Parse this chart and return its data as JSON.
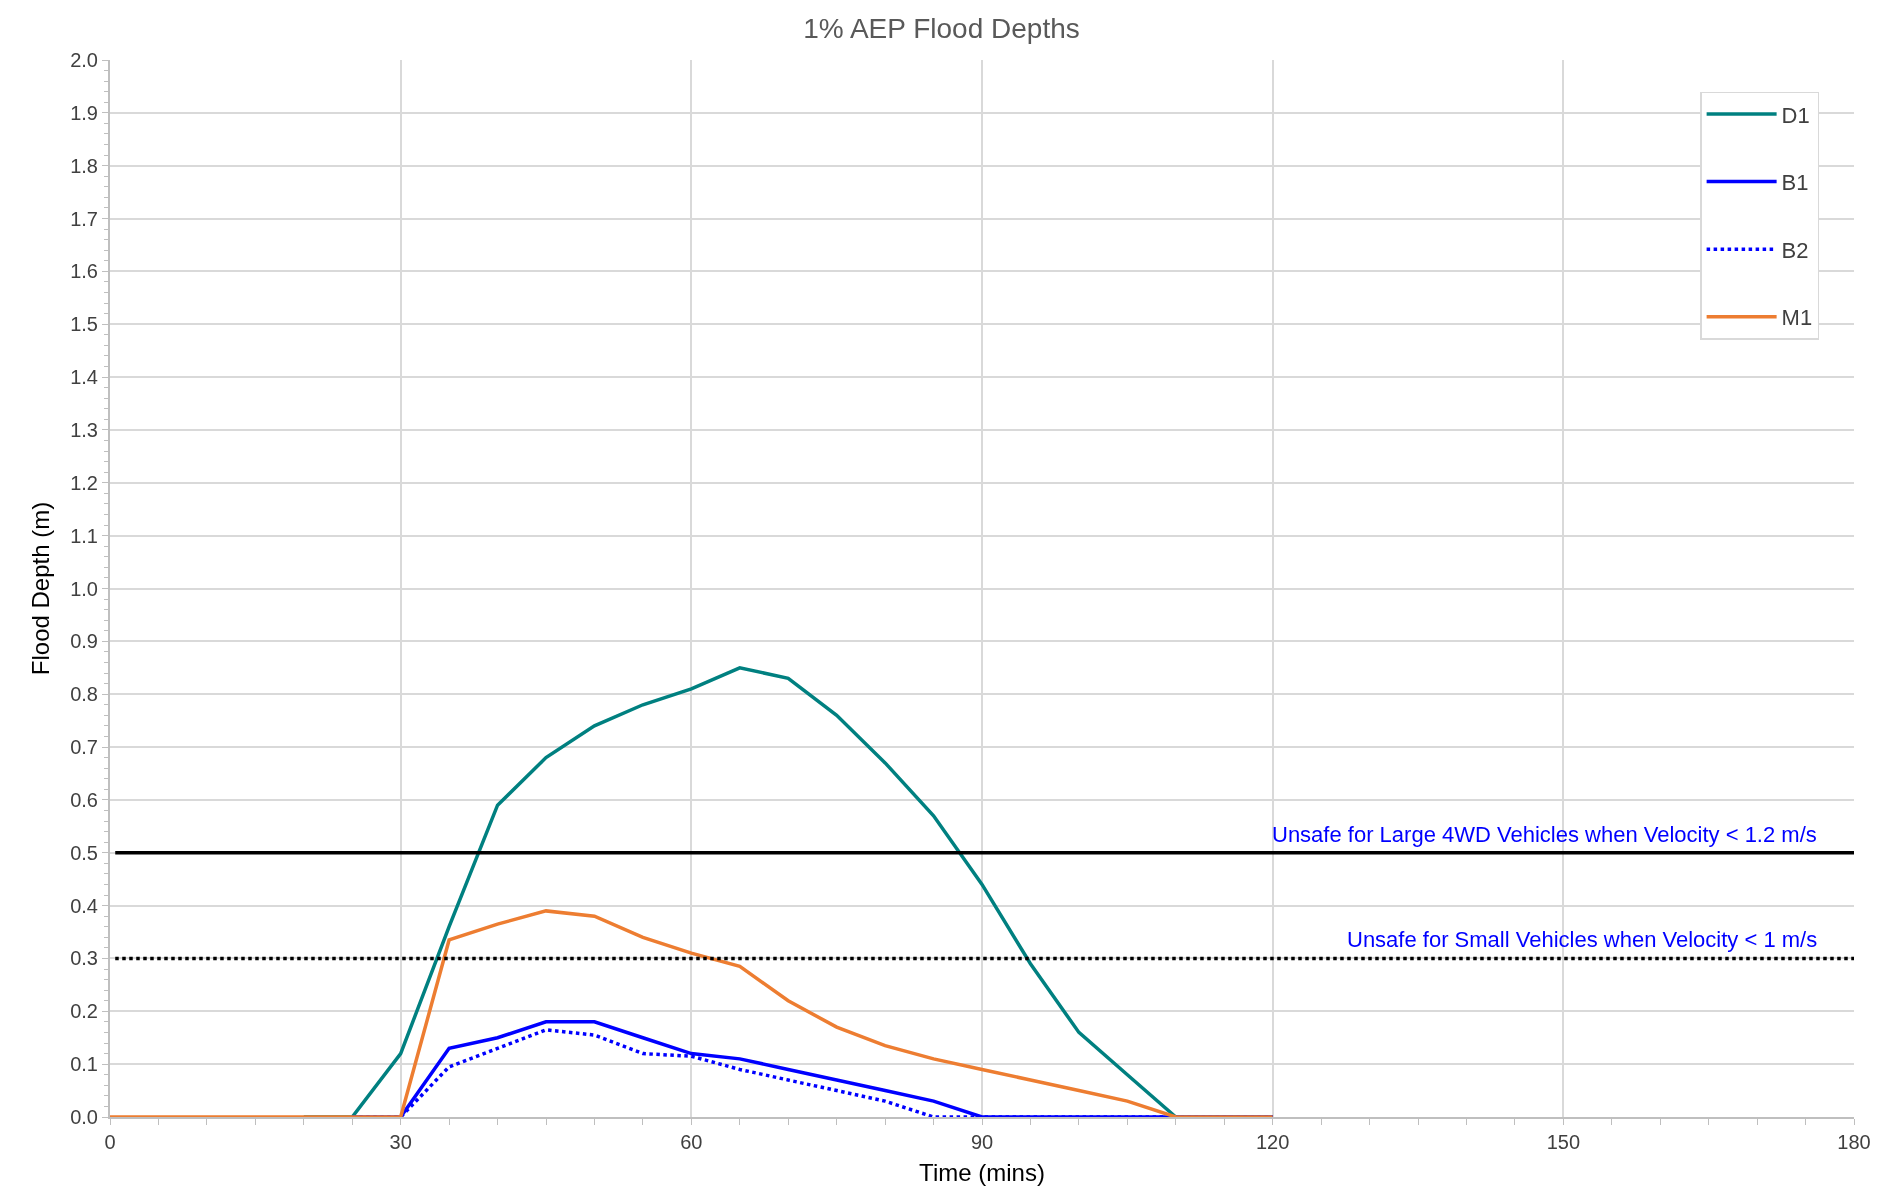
{
  "chart_data": {
    "type": "line",
    "title": "1% AEP Flood Depths",
    "xlabel": "Time (mins)",
    "ylabel": "Flood Depth (m)",
    "x": [
      0,
      5,
      10,
      15,
      20,
      25,
      30,
      35,
      40,
      45,
      50,
      55,
      60,
      65,
      70,
      75,
      80,
      85,
      90,
      95,
      100,
      105,
      110,
      115,
      120
    ],
    "series": [
      {
        "name": "D1",
        "color": "#008080",
        "line_style": "solid",
        "values": [
          null,
          null,
          null,
          null,
          0,
          0,
          0.12,
          0.36,
          0.59,
          0.68,
          0.74,
          0.78,
          0.81,
          0.85,
          0.83,
          0.76,
          0.67,
          0.57,
          0.44,
          0.29,
          0.16,
          0.08,
          0,
          0,
          0
        ]
      },
      {
        "name": "B1",
        "color": "#0000ff",
        "line_style": "solid",
        "values": [
          null,
          null,
          null,
          null,
          null,
          0,
          0,
          0.13,
          0.15,
          0.18,
          0.18,
          0.15,
          0.12,
          0.11,
          0.09,
          0.07,
          0.05,
          0.03,
          0,
          0,
          0,
          0,
          0,
          0,
          0
        ]
      },
      {
        "name": "B2",
        "color": "#0000ff",
        "line_style": "dotted",
        "values": [
          null,
          null,
          null,
          null,
          null,
          0,
          0,
          0.095,
          0.13,
          0.165,
          0.155,
          0.12,
          0.115,
          0.09,
          0.07,
          0.05,
          0.03,
          0,
          0,
          0,
          0,
          0,
          0,
          0,
          0
        ]
      },
      {
        "name": "M1",
        "color": "#ed7d31",
        "line_style": "solid",
        "values": [
          0,
          0,
          0,
          0,
          0,
          0,
          0,
          0.335,
          0.365,
          0.39,
          0.38,
          0.34,
          0.31,
          0.285,
          0.22,
          0.17,
          0.135,
          0.11,
          0.09,
          0.07,
          0.05,
          0.03,
          0,
          0,
          0
        ]
      }
    ],
    "xlim": [
      0,
      180
    ],
    "xticks": [
      0,
      30,
      60,
      90,
      120,
      150,
      180
    ],
    "ylim": [
      0,
      2
    ],
    "yticks": [
      {
        "value": 0,
        "label": "0.0"
      },
      0.1,
      0.2,
      0.3,
      0.4,
      0.5,
      0.6,
      0.7,
      0.8,
      0.9,
      {
        "value": 1,
        "label": "1.0"
      },
      1.1,
      1.2,
      1.3,
      1.4,
      1.5,
      1.6,
      1.7,
      1.8,
      1.9,
      {
        "value": 2,
        "label": "2.0"
      }
    ],
    "ref_lines": [
      {
        "axis": "y",
        "value": 0.5,
        "label": "Unsafe for Large 4WD Vehicles when Velocity < 1.2 m/s",
        "color": "#000000",
        "line_style": "solid"
      },
      {
        "axis": "y",
        "value": 0.3,
        "label": "Unsafe for Small Vehicles when Velocity < 1 m/s",
        "color": "#000000",
        "line_style": "dotted"
      }
    ],
    "grid": true,
    "legend": "top right",
    "marker": "none"
  }
}
